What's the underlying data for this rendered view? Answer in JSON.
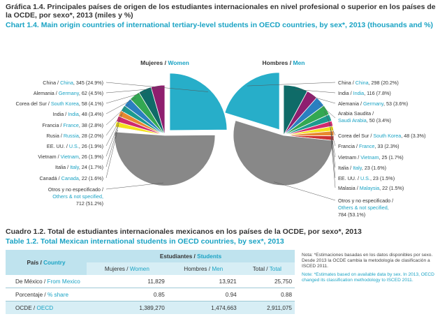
{
  "header": {
    "title_es": "Gráfica 1.4. Principales países de origen de los estudiantes internacionales en nivel profesional o superior en los países de la OCDE, por sexo*, 2013 (miles y %)",
    "title_en": "Chart 1.4. Main origin countries of international tertiary-level students in OECD countries, by sex*, 2013 (thousands and %)"
  },
  "chart_data": [
    {
      "type": "pie",
      "title_es": "Mujeres",
      "title_en": "Women",
      "unit": "thousands",
      "slices": [
        {
          "label_es": "China",
          "label_en": "China",
          "value": 345,
          "pct": "24.9%",
          "color": "#27aec9"
        },
        {
          "label_es": "Alemania",
          "label_en": "Germany",
          "value": 62,
          "pct": "4.5%",
          "color": "#8e1f6f"
        },
        {
          "label_es": "Corea del Sur",
          "label_en": "South Korea",
          "value": 58,
          "pct": "4.1%",
          "color": "#0f6b68"
        },
        {
          "label_es": "India",
          "label_en": "India",
          "value": 48,
          "pct": "3.4%",
          "color": "#33a852"
        },
        {
          "label_es": "Francia",
          "label_en": "France",
          "value": 38,
          "pct": "2.8%",
          "color": "#2a7fc0"
        },
        {
          "label_es": "Rusia",
          "label_en": "Russia",
          "value": 28,
          "pct": "2.0%",
          "color": "#1d9b8f"
        },
        {
          "label_es": "EE. UU.",
          "label_en": "U.S.",
          "value": 26,
          "pct": "1.9%",
          "color": "#e88930"
        },
        {
          "label_es": "Vietnam",
          "label_en": "Vietnam",
          "value": 26,
          "pct": "1.9%",
          "color": "#d02a6e"
        },
        {
          "label_es": "Italia",
          "label_en": "Italy",
          "value": 24,
          "pct": "1.7%",
          "color": "#f4e21d"
        },
        {
          "label_es": "Canadá",
          "label_en": "Canada",
          "value": 22,
          "pct": "1.6%",
          "color": "#ffffff"
        },
        {
          "label_es": "Otros y no especificado",
          "label_en": "Others & not specified",
          "value": 712,
          "pct": "51.2%",
          "color": "#888888"
        }
      ]
    },
    {
      "type": "pie",
      "title_es": "Hombres",
      "title_en": "Men",
      "unit": "thousands",
      "slices": [
        {
          "label_es": "China",
          "label_en": "China",
          "value": 298,
          "pct": "20.2%",
          "color": "#27aec9"
        },
        {
          "label_es": "India",
          "label_en": "India",
          "value": 116,
          "pct": "7.8%",
          "color": "#0f6b68"
        },
        {
          "label_es": "Alemania",
          "label_en": "Germany",
          "value": 53,
          "pct": "3.6%",
          "color": "#8e1f6f"
        },
        {
          "label_es": "Arabia Saudita",
          "label_en": "Saudi Arabia",
          "value": 50,
          "pct": "3.4%",
          "color": "#2a7fc0"
        },
        {
          "label_es": "Corea del Sur",
          "label_en": "South Korea",
          "value": 48,
          "pct": "3.3%",
          "color": "#33a852"
        },
        {
          "label_es": "Francia",
          "label_en": "France",
          "value": 33,
          "pct": "2.3%",
          "color": "#1d9b8f"
        },
        {
          "label_es": "Vietnam",
          "label_en": "Vietnam",
          "value": 25,
          "pct": "1.7%",
          "color": "#d02a6e"
        },
        {
          "label_es": "Italia",
          "label_en": "Italy",
          "value": 23,
          "pct": "1.6%",
          "color": "#f4e21d"
        },
        {
          "label_es": "EE. UU.",
          "label_en": "U.S.",
          "value": 23,
          "pct": "1.5%",
          "color": "#e88930"
        },
        {
          "label_es": "Malasia",
          "label_en": "Malaysia",
          "value": 22,
          "pct": "1.5%",
          "color": "#cc3333"
        },
        {
          "label_es": "Otros y no especificado",
          "label_en": "Others & not specified",
          "value": 784,
          "pct": "53.1%",
          "color": "#888888"
        }
      ]
    }
  ],
  "table": {
    "title_es": "Cuadro 1.2. Total de estudiantes internacionales mexicanos en los países de la OCDE, por sexo*, 2013",
    "title_en": "Table 1.2. Total Mexican international students in OECD countries, by sex*, 2013",
    "col_country_es": "País",
    "col_country_en": "Country",
    "group_es": "Estudiantes",
    "group_en": "Students",
    "col_women_es": "Mujeres",
    "col_women_en": "Women",
    "col_men_es": "Hombres",
    "col_men_en": "Men",
    "col_total_es": "Total",
    "col_total_en": "Total",
    "rows": [
      {
        "label_es": "De México",
        "label_en": "From Mexico",
        "women": "11,829",
        "men": "13,921",
        "total": "25,750"
      },
      {
        "label_es": "Porcentaje",
        "label_en": "% share",
        "women": "0.85",
        "men": "0.94",
        "total": "0.88"
      },
      {
        "label_es": "OCDE",
        "label_en": "OECD",
        "women": "1,389,270",
        "men": "1,474,663",
        "total": "2,911,075"
      }
    ]
  },
  "notes": {
    "es": "Nota: *Estimaciones basadas en los datos disponibles por sexo. Desde 2013 la OCDE cambia la metodología de clasificación a ISCED 2011.",
    "en": "Note: *Estimates based on available data by sex. In 2013, OECD changed its classification methodology to ISCED 2011."
  }
}
